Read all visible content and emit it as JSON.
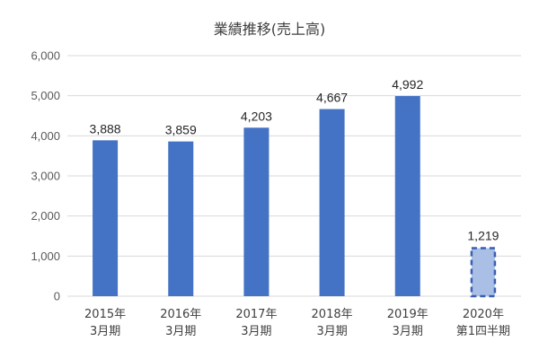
{
  "chart_data": {
    "type": "bar",
    "title": "業績推移(売上高)",
    "xlabel": "",
    "ylabel": "",
    "ylim": [
      0,
      6000
    ],
    "yticks": [
      "0",
      "1,000",
      "2,000",
      "3,000",
      "4,000",
      "5,000",
      "6,000"
    ],
    "grid": true,
    "categories": [
      [
        "2015年",
        "3月期"
      ],
      [
        "2016年",
        "3月期"
      ],
      [
        "2017年",
        "3月期"
      ],
      [
        "2018年",
        "3月期"
      ],
      [
        "2019年",
        "3月期"
      ],
      [
        "2020年",
        "第1四半期"
      ]
    ],
    "values": [
      3888,
      3859,
      4203,
      4667,
      4992,
      1219
    ],
    "data_labels": [
      "3,888",
      "3,859",
      "4,203",
      "4,667",
      "4,992",
      "1,219"
    ],
    "bar_styles": [
      "solid",
      "solid",
      "solid",
      "solid",
      "solid",
      "dashed-light"
    ],
    "colors": {
      "bar": "#4472c4",
      "bar_light": "#a9bfe6",
      "bar_dashed_border": "#3a5fb0"
    }
  }
}
